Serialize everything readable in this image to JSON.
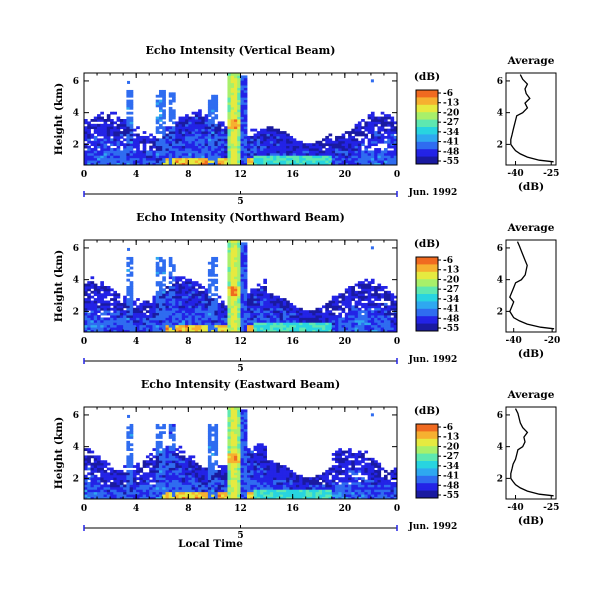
{
  "chart_data": [
    {
      "type": "heatmap",
      "title": "Echo Intensity (Vertical Beam)",
      "ylabel": "Height (km)",
      "xticks": [
        "0",
        "4",
        "8",
        "12",
        "16",
        "20",
        "0"
      ],
      "yticks": [
        "2",
        "4",
        "6"
      ],
      "xlim": [
        0,
        24
      ],
      "ylim": [
        0.7,
        6.5
      ],
      "date_label": "Jun. 1992",
      "day_marker": "5",
      "colorbar": {
        "unit": "(dB)",
        "ticks": [
          "-6",
          "-13",
          "-20",
          "-27",
          "-34",
          "-41",
          "-48",
          "-55"
        ],
        "range": [
          -55,
          -6
        ]
      },
      "profile": {
        "title": "Average",
        "xlabel": "(dB)",
        "xticks": [
          "-40",
          "-25"
        ],
        "xlim": [
          -44,
          -23
        ],
        "heights": [
          0.9,
          1.0,
          1.2,
          1.4,
          1.6,
          1.8,
          2.0,
          2.3,
          2.6,
          2.9,
          3.2,
          3.5,
          3.8,
          4.0,
          4.3,
          4.6,
          4.9,
          5.2,
          5.5,
          5.8,
          6.1,
          6.4
        ],
        "values": [
          -24,
          -30,
          -35,
          -38,
          -40,
          -41,
          -42,
          -42,
          -41.5,
          -41,
          -40.5,
          -40,
          -39.5,
          -37,
          -35,
          -36,
          -34,
          -35.5,
          -36,
          -35,
          -37,
          -38
        ]
      }
    },
    {
      "type": "heatmap",
      "title": "Echo Intensity (Northward Beam)",
      "ylabel": "Height (km)",
      "xticks": [
        "0",
        "4",
        "8",
        "12",
        "16",
        "20",
        "0"
      ],
      "yticks": [
        "2",
        "4",
        "6"
      ],
      "xlim": [
        0,
        24
      ],
      "ylim": [
        0.7,
        6.5
      ],
      "date_label": "Jun. 1992",
      "day_marker": "5",
      "colorbar": {
        "unit": "(dB)",
        "ticks": [
          "-6",
          "-13",
          "-20",
          "-27",
          "-34",
          "-41",
          "-48",
          "-55"
        ],
        "range": [
          -55,
          -6
        ]
      },
      "profile": {
        "title": "Average",
        "xlabel": "(dB)",
        "xticks": [
          "-40",
          "-20"
        ],
        "xlim": [
          -44,
          -18
        ],
        "heights": [
          0.9,
          1.0,
          1.2,
          1.4,
          1.6,
          1.8,
          2.0,
          2.3,
          2.6,
          2.9,
          3.2,
          3.5,
          3.8,
          4.0,
          4.3,
          4.6,
          4.9,
          5.2,
          5.5,
          5.8,
          6.1,
          6.4
        ],
        "values": [
          -19,
          -26,
          -33,
          -37,
          -40,
          -41,
          -42,
          -41,
          -40,
          -42,
          -41,
          -40,
          -39,
          -36,
          -34,
          -33.5,
          -33,
          -34,
          -35,
          -36,
          -37,
          -38
        ]
      }
    },
    {
      "type": "heatmap",
      "title": "Echo Intensity (Eastward Beam)",
      "ylabel": "Height (km)",
      "xticks": [
        "0",
        "4",
        "8",
        "12",
        "16",
        "20",
        "0"
      ],
      "yticks": [
        "2",
        "4",
        "6"
      ],
      "xlim": [
        0,
        24
      ],
      "ylim": [
        0.7,
        6.5
      ],
      "date_label": "Jun. 1992",
      "day_marker": "5",
      "xlabel": "Local Time",
      "colorbar": {
        "unit": "(dB)",
        "ticks": [
          "-6",
          "-13",
          "-20",
          "-27",
          "-34",
          "-41",
          "-48",
          "-55"
        ],
        "range": [
          -55,
          -6
        ]
      },
      "profile": {
        "title": "Average",
        "xlabel": "(dB)",
        "xticks": [
          "-40",
          "-25"
        ],
        "xlim": [
          -44,
          -23
        ],
        "heights": [
          0.9,
          1.0,
          1.2,
          1.4,
          1.6,
          1.8,
          2.0,
          2.3,
          2.6,
          2.9,
          3.2,
          3.5,
          3.8,
          4.0,
          4.3,
          4.6,
          4.9,
          5.2,
          5.5,
          5.8,
          6.1,
          6.4
        ],
        "values": [
          -24,
          -30,
          -35,
          -38,
          -40,
          -41,
          -42,
          -42,
          -41.5,
          -41,
          -40,
          -39.5,
          -39,
          -37,
          -36,
          -36.5,
          -35,
          -37,
          -38,
          -38.5,
          -39,
          -40
        ]
      }
    }
  ]
}
